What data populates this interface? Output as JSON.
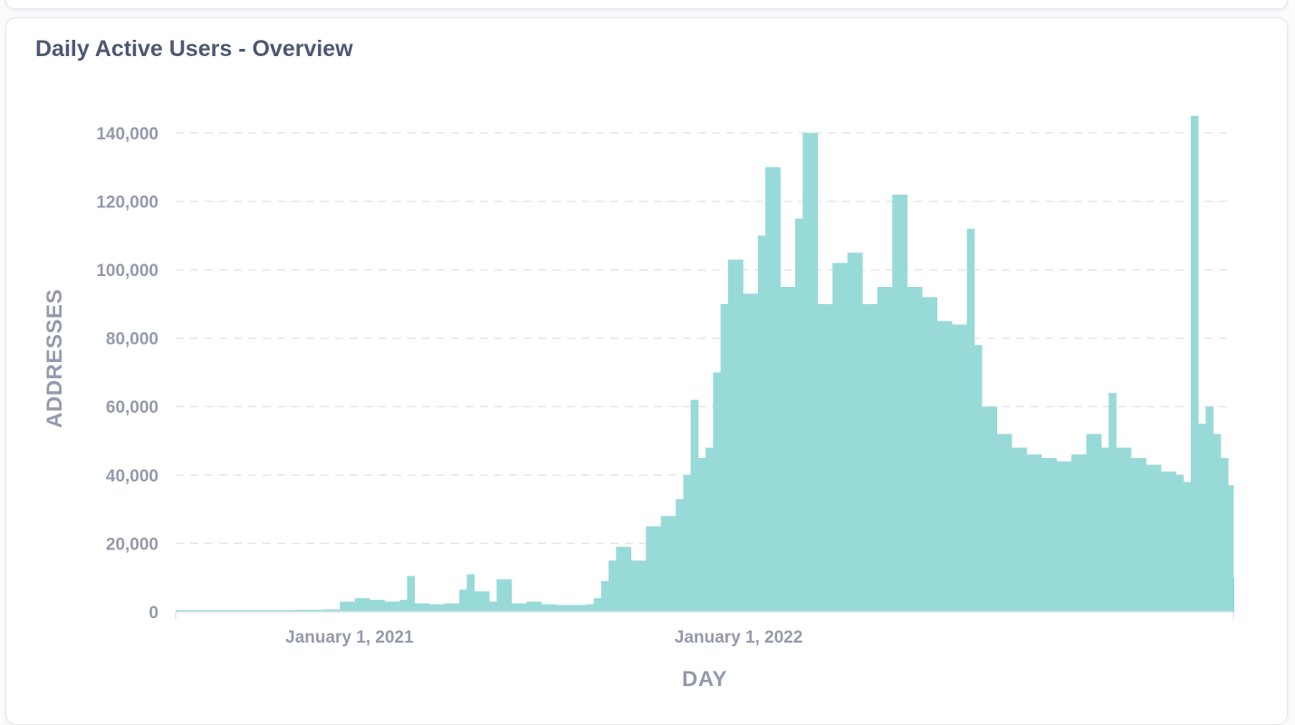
{
  "card": {
    "title": "Daily Active Users - Overview"
  },
  "colors": {
    "bar": "#98dad8",
    "grid": "#e3e6ea",
    "tick": "#949aab",
    "title": "#4c5773"
  },
  "chart_data": {
    "type": "bar",
    "title": "Daily Active Users - Overview",
    "xlabel": "DAY",
    "ylabel": "ADDRESSES",
    "ylim": [
      0,
      145000
    ],
    "xlim": [
      "2020-07-22",
      "2023-04-10"
    ],
    "y_ticks": [
      0,
      20000,
      40000,
      60000,
      80000,
      100000,
      120000,
      140000
    ],
    "y_tick_labels": [
      "0",
      "20,000",
      "40,000",
      "60,000",
      "80,000",
      "100,000",
      "120,000",
      "140,000"
    ],
    "x_ticks": [
      "2021-01-01",
      "2022-01-01"
    ],
    "x_tick_labels": [
      "January 1, 2021",
      "January 1, 2022"
    ],
    "grid": true,
    "legend": "none",
    "series": [
      {
        "aggregation": "weekly",
        "points": [
          [
            "2020-07-22",
            500
          ],
          [
            "2020-08-19",
            500
          ],
          [
            "2020-09-16",
            500
          ],
          [
            "2020-10-14",
            500
          ],
          [
            "2020-11-11",
            600
          ],
          [
            "2020-12-09",
            700
          ],
          [
            "2020-12-23",
            3000
          ],
          [
            "2021-01-06",
            4000
          ],
          [
            "2021-01-20",
            3500
          ],
          [
            "2021-02-03",
            3000
          ],
          [
            "2021-02-17",
            3500
          ],
          [
            "2021-02-24",
            10500
          ],
          [
            "2021-03-03",
            2500
          ],
          [
            "2021-03-17",
            2200
          ],
          [
            "2021-03-31",
            2500
          ],
          [
            "2021-04-14",
            6500
          ],
          [
            "2021-04-21",
            11000
          ],
          [
            "2021-04-28",
            6000
          ],
          [
            "2021-05-12",
            3000
          ],
          [
            "2021-05-19",
            9500
          ],
          [
            "2021-06-02",
            2500
          ],
          [
            "2021-06-16",
            3000
          ],
          [
            "2021-06-30",
            2200
          ],
          [
            "2021-07-14",
            2000
          ],
          [
            "2021-07-28",
            2000
          ],
          [
            "2021-08-11",
            2200
          ],
          [
            "2021-08-18",
            4000
          ],
          [
            "2021-08-25",
            9000
          ],
          [
            "2021-09-01",
            15000
          ],
          [
            "2021-09-08",
            19000
          ],
          [
            "2021-09-22",
            15000
          ],
          [
            "2021-10-06",
            25000
          ],
          [
            "2021-10-20",
            28000
          ],
          [
            "2021-11-03",
            33000
          ],
          [
            "2021-11-10",
            40000
          ],
          [
            "2021-11-17",
            62000
          ],
          [
            "2021-11-24",
            45000
          ],
          [
            "2021-12-01",
            48000
          ],
          [
            "2021-12-08",
            70000
          ],
          [
            "2021-12-15",
            90000
          ],
          [
            "2021-12-22",
            103000
          ],
          [
            "2022-01-05",
            93000
          ],
          [
            "2022-01-19",
            110000
          ],
          [
            "2022-01-26",
            130000
          ],
          [
            "2022-02-09",
            95000
          ],
          [
            "2022-02-23",
            115000
          ],
          [
            "2022-03-02",
            140000
          ],
          [
            "2022-03-16",
            90000
          ],
          [
            "2022-03-30",
            102000
          ],
          [
            "2022-04-13",
            105000
          ],
          [
            "2022-04-27",
            90000
          ],
          [
            "2022-05-11",
            95000
          ],
          [
            "2022-05-25",
            122000
          ],
          [
            "2022-06-08",
            95000
          ],
          [
            "2022-06-22",
            92000
          ],
          [
            "2022-07-06",
            85000
          ],
          [
            "2022-07-20",
            84000
          ],
          [
            "2022-08-03",
            112000
          ],
          [
            "2022-08-10",
            78000
          ],
          [
            "2022-08-17",
            60000
          ],
          [
            "2022-08-31",
            52000
          ],
          [
            "2022-09-14",
            48000
          ],
          [
            "2022-09-28",
            46000
          ],
          [
            "2022-10-12",
            45000
          ],
          [
            "2022-10-26",
            44000
          ],
          [
            "2022-11-09",
            46000
          ],
          [
            "2022-11-23",
            52000
          ],
          [
            "2022-12-07",
            48000
          ],
          [
            "2022-12-14",
            64000
          ],
          [
            "2022-12-21",
            48000
          ],
          [
            "2023-01-04",
            45000
          ],
          [
            "2023-01-18",
            43000
          ],
          [
            "2023-02-01",
            41000
          ],
          [
            "2023-02-15",
            40000
          ],
          [
            "2023-02-22",
            38000
          ],
          [
            "2023-03-01",
            145000
          ],
          [
            "2023-03-08",
            55000
          ],
          [
            "2023-03-15",
            60000
          ],
          [
            "2023-03-22",
            52000
          ],
          [
            "2023-03-29",
            45000
          ],
          [
            "2023-04-05",
            37000
          ],
          [
            "2023-04-10",
            10000
          ]
        ]
      }
    ]
  }
}
